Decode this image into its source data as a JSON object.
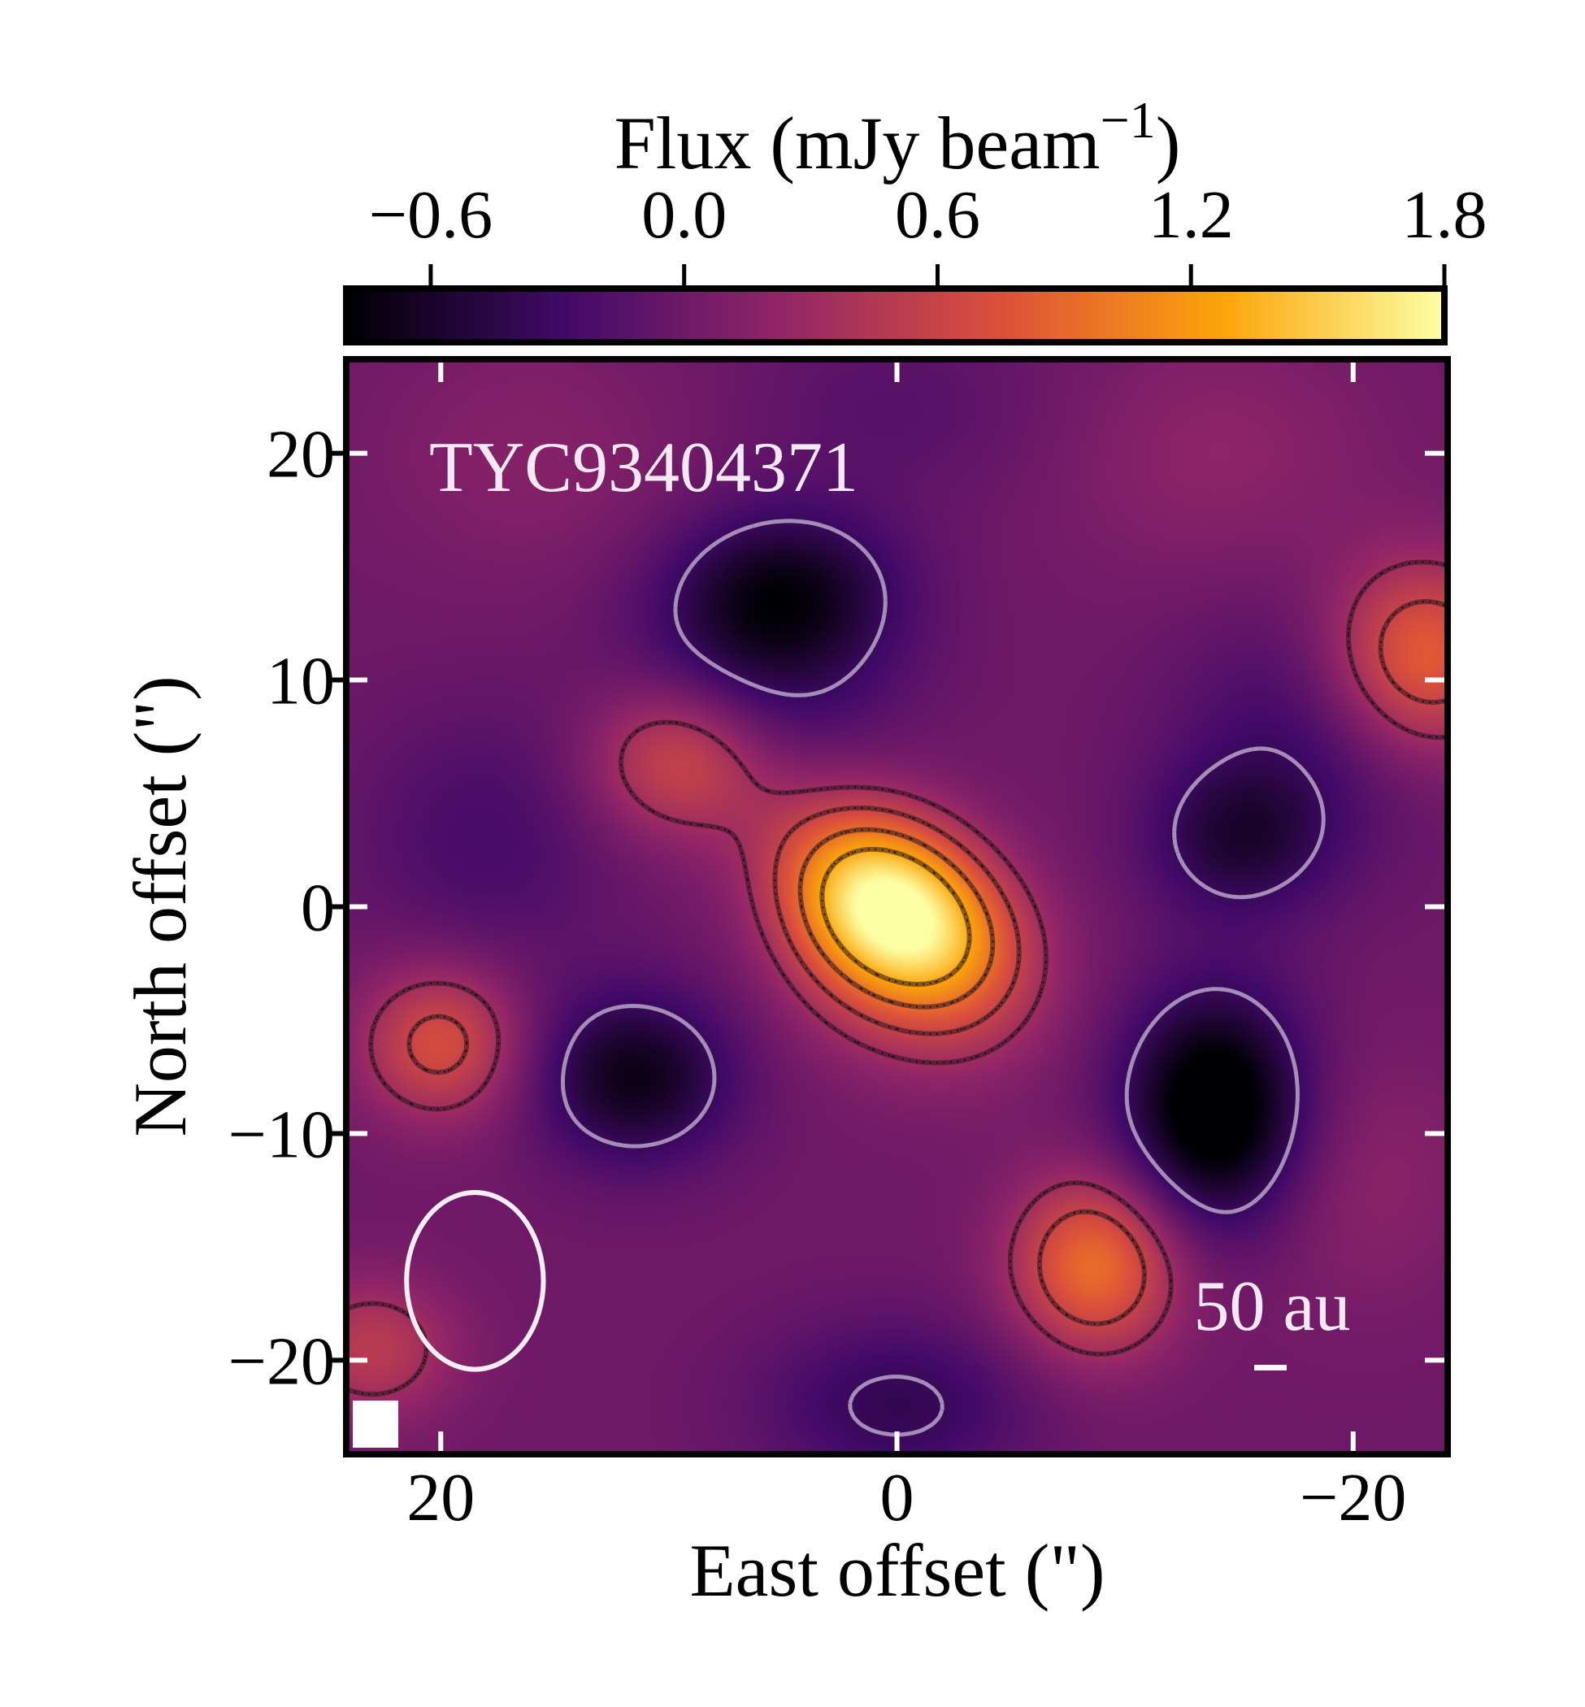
{
  "chart_data": {
    "type": "heatmap",
    "object_label": "TYC93404371",
    "xlabel": "East offset (\")",
    "ylabel": "North offset (\")",
    "xlim": [
      24,
      -24
    ],
    "ylim": [
      -24,
      24
    ],
    "x_ticks": [
      20,
      0,
      -20
    ],
    "y_ticks": [
      20,
      10,
      0,
      -10,
      -20
    ],
    "x_tick_labels": [
      "20",
      "0",
      "−20"
    ],
    "y_tick_labels": [
      "20",
      "10",
      "0",
      "−10",
      "−20"
    ],
    "colorbar": {
      "label_main": "Flux (mJy beam",
      "label_exp": "−1",
      "label_close": ")",
      "range": [
        -0.8,
        1.8
      ],
      "ticks": [
        -0.6,
        0.0,
        0.6,
        1.2,
        1.8
      ],
      "tick_labels": [
        "−0.6",
        "0.0",
        "0.6",
        "1.2",
        "1.8"
      ],
      "colormap": "inferno",
      "colors": [
        "#000004",
        "#420a68",
        "#932667",
        "#dd513a",
        "#fca50a",
        "#fcffa4"
      ]
    },
    "scale_bar_label": "50 au",
    "beam": {
      "center": [
        18.5,
        -16.5
      ],
      "width_arcsec": 6.0,
      "height_arcsec": 7.8
    },
    "components": [
      {
        "x": 0.2,
        "y": 0.0,
        "sx": 3.6,
        "sy": 2.6,
        "theta_deg": 35,
        "amp": 1.75
      },
      {
        "x": -2.0,
        "y": -3.5,
        "sx": 3.2,
        "sy": 3.2,
        "theta_deg": 0,
        "amp": 0.35
      },
      {
        "x": 2.5,
        "y": -2.0,
        "sx": 2.5,
        "sy": 3.0,
        "theta_deg": 0,
        "amp": 0.2
      },
      {
        "x": 9.5,
        "y": 6.5,
        "sx": 2.8,
        "sy": 2.4,
        "theta_deg": 0,
        "amp": 0.68
      },
      {
        "x": 20.0,
        "y": -6.0,
        "sx": 2.5,
        "sy": 2.4,
        "theta_deg": 0,
        "amp": 0.72
      },
      {
        "x": -8.7,
        "y": -15.8,
        "sx": 2.6,
        "sy": 2.8,
        "theta_deg": 0,
        "amp": 0.95
      },
      {
        "x": -23.0,
        "y": 11.0,
        "sx": 3.0,
        "sy": 3.0,
        "theta_deg": 0,
        "amp": 0.9
      },
      {
        "x": 23.0,
        "y": -19.5,
        "sx": 2.6,
        "sy": 2.2,
        "theta_deg": 0,
        "amp": 0.5
      },
      {
        "x": 5.0,
        "y": 14.0,
        "sx": 3.5,
        "sy": 2.5,
        "theta_deg": 0,
        "amp": -0.65
      },
      {
        "x": -14.0,
        "y": -9.0,
        "sx": 2.8,
        "sy": 3.6,
        "theta_deg": 0,
        "amp": -1.05
      },
      {
        "x": 11.5,
        "y": -7.5,
        "sx": 3.0,
        "sy": 2.6,
        "theta_deg": 0,
        "amp": -0.7
      },
      {
        "x": -15.0,
        "y": 3.0,
        "sx": 2.8,
        "sy": 2.4,
        "theta_deg": 0,
        "amp": -0.5
      },
      {
        "x": 6.0,
        "y": 10.0,
        "sx": 4.0,
        "sy": 3.0,
        "theta_deg": 0,
        "amp": -0.35
      },
      {
        "x": 18.0,
        "y": 3.0,
        "sx": 4.0,
        "sy": 4.0,
        "theta_deg": 0,
        "amp": -0.25
      },
      {
        "x": 0.0,
        "y": -22.0,
        "sx": 4.0,
        "sy": 2.5,
        "theta_deg": 0,
        "amp": -0.4
      },
      {
        "x": -18.0,
        "y": 8.0,
        "sx": 4.0,
        "sy": 4.0,
        "theta_deg": 0,
        "amp": -0.3
      },
      {
        "x": -14.0,
        "y": 20.0,
        "sx": 5.0,
        "sy": 4.0,
        "theta_deg": 0,
        "amp": 0.2
      },
      {
        "x": 16.0,
        "y": 20.0,
        "sx": 5.0,
        "sy": 4.0,
        "theta_deg": 0,
        "amp": 0.15
      },
      {
        "x": -20.0,
        "y": -12.0,
        "sx": 4.0,
        "sy": 4.0,
        "theta_deg": 0,
        "amp": 0.2
      },
      {
        "x": 0.0,
        "y": 22.0,
        "sx": 5.0,
        "sy": 3.0,
        "theta_deg": 0,
        "amp": -0.15
      }
    ],
    "contour_levels_positive": [
      0.33,
      0.6,
      0.95,
      1.3
    ],
    "contour_levels_negative": [
      -0.35
    ]
  }
}
